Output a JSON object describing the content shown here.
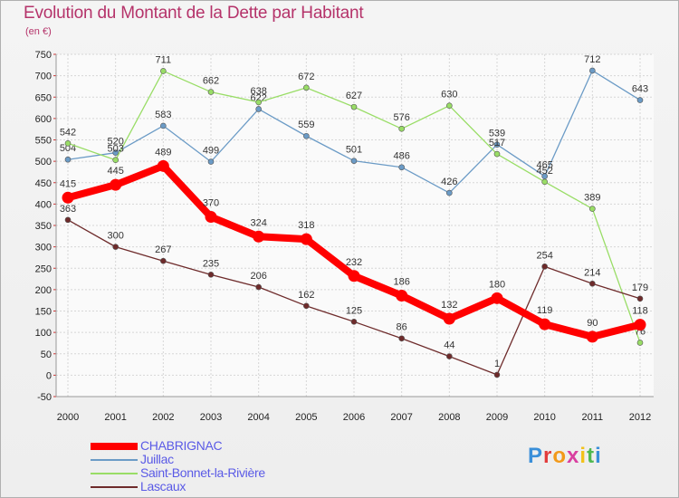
{
  "title": "Evolution du Montant de la Dette par Habitant",
  "subtitle": "(en €)",
  "logo": "Proxiti",
  "chart_data": {
    "type": "line",
    "title": "Evolution du Montant de la Dette par Habitant",
    "ylabel": "(en €)",
    "xlabel": "",
    "categories": [
      "2000",
      "2001",
      "2002",
      "2003",
      "2004",
      "2005",
      "2006",
      "2007",
      "2008",
      "2009",
      "2010",
      "2011",
      "2012"
    ],
    "ylim": [
      -50,
      750
    ],
    "yticks": [
      -50,
      0,
      50,
      100,
      150,
      200,
      250,
      300,
      350,
      400,
      450,
      500,
      550,
      600,
      650,
      700,
      750
    ],
    "grid": true,
    "legend_position": "bottom-left",
    "series": [
      {
        "name": "CHABRIGNAC",
        "color": "#ff0000",
        "values": [
          415,
          445,
          489,
          370,
          324,
          318,
          232,
          186,
          132,
          180,
          119,
          90,
          118
        ]
      },
      {
        "name": "Juillac",
        "color": "#6b9bc6",
        "values": [
          504,
          520,
          583,
          499,
          622,
          559,
          501,
          486,
          426,
          539,
          465,
          712,
          643
        ]
      },
      {
        "name": "Saint-Bonnet-la-Rivière",
        "color": "#99dd66",
        "values": [
          542,
          503,
          711,
          662,
          638,
          672,
          627,
          576,
          630,
          517,
          452,
          389,
          76
        ]
      },
      {
        "name": "Lascaux",
        "color": "#6e2b2b",
        "values": [
          363,
          300,
          267,
          235,
          206,
          162,
          125,
          86,
          44,
          1,
          254,
          214,
          179
        ]
      }
    ]
  }
}
